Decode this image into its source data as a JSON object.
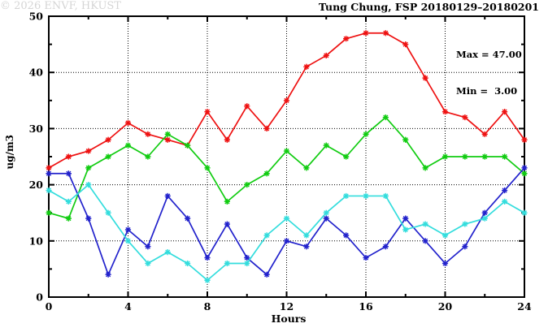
{
  "title": "Tung Chung, FSP 20180129–20180201",
  "stats": {
    "max_label": "Max = 47.00",
    "min_label": "Min =  3.00"
  },
  "watermark": "© 2026 ENVF, HKUST",
  "chart_data": {
    "type": "line",
    "title": "Tung Chung, FSP 20180129–20180201",
    "xlabel": "Hours",
    "ylabel": "ug/m3",
    "xlim": [
      0,
      24
    ],
    "ylim": [
      0,
      50
    ],
    "grid": "dotted",
    "legend": "none",
    "x": [
      0,
      1,
      2,
      3,
      4,
      5,
      6,
      7,
      8,
      9,
      10,
      11,
      12,
      13,
      14,
      15,
      16,
      17,
      18,
      19,
      20,
      21,
      22,
      23,
      24
    ],
    "series": [
      {
        "name": "red",
        "color": "#ee1111",
        "values": [
          23,
          25,
          26,
          28,
          31,
          29,
          28,
          27,
          33,
          28,
          34,
          30,
          35,
          41,
          43,
          46,
          47,
          47,
          45,
          39,
          33,
          32,
          29,
          33,
          28
        ]
      },
      {
        "name": "green",
        "color": "#11cc11",
        "values": [
          15,
          14,
          23,
          25,
          27,
          25,
          29,
          27,
          23,
          17,
          20,
          22,
          26,
          23,
          27,
          25,
          29,
          32,
          28,
          23,
          25,
          25,
          25,
          25,
          22
        ]
      },
      {
        "name": "blue",
        "color": "#2222cc",
        "values": [
          22,
          22,
          14,
          4,
          12,
          9,
          18,
          14,
          7,
          13,
          7,
          4,
          10,
          9,
          14,
          11,
          7,
          9,
          14,
          10,
          6,
          9,
          15,
          19,
          23
        ]
      },
      {
        "name": "cyan",
        "color": "#33dddd",
        "values": [
          19,
          17,
          20,
          15,
          10,
          6,
          8,
          6,
          3,
          6,
          6,
          11,
          14,
          11,
          15,
          18,
          18,
          18,
          12,
          13,
          11,
          13,
          14,
          17,
          15
        ]
      }
    ],
    "x_tick_labels": [
      "0",
      "4",
      "8",
      "12",
      "16",
      "20",
      "24"
    ],
    "x_ticks_major": [
      0,
      4,
      8,
      12,
      16,
      20,
      24
    ],
    "x_ticks_minor": [
      2,
      6,
      10,
      14,
      18,
      22
    ],
    "y_tick_labels": [
      "0",
      "10",
      "20",
      "30",
      "40",
      "50"
    ],
    "y_ticks_major": [
      0,
      10,
      20,
      30,
      40,
      50
    ],
    "y_ticks_minor": [
      5,
      15,
      25,
      35,
      45
    ],
    "x_gridlines": [
      4,
      8,
      12,
      16,
      20
    ],
    "y_gridlines": [
      10,
      20,
      30,
      40
    ],
    "annotations": {
      "max": 47.0,
      "min": 3.0
    }
  }
}
